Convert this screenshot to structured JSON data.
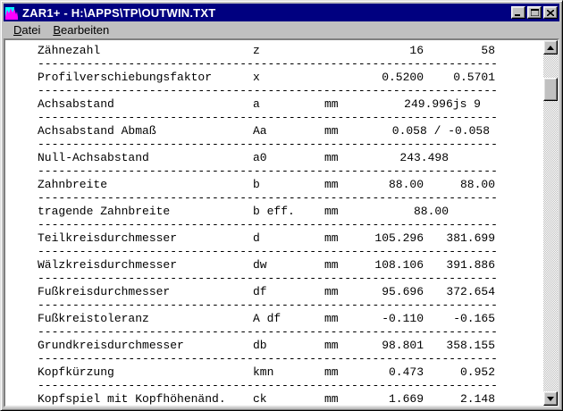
{
  "window": {
    "title": "ZAR1+ - H:\\APPS\\TP\\OUTWIN.TXT"
  },
  "menu": {
    "items": [
      {
        "accel": "D",
        "rest": "atei"
      },
      {
        "accel": "B",
        "rest": "earbeiten"
      }
    ]
  },
  "colors": {
    "titlebar": "#000080",
    "chrome": "#c0c0c0",
    "paper": "#ffffff",
    "text": "#000000",
    "icon_cyan": "#00ffff",
    "icon_magenta": "#ff00ff"
  },
  "table": {
    "separator": "--------------------------------------------------------------------------------",
    "rows": [
      {
        "label": "Zähnezahl",
        "symbol": "z",
        "unit": "",
        "v1": "16",
        "v2": "58"
      },
      {
        "label": "Profilverschiebungsfaktor",
        "symbol": "x",
        "unit": "",
        "v1": "0.5200",
        "v2": "0.5701"
      },
      {
        "label": "Achsabstand",
        "symbol": "a",
        "unit": "mm",
        "merged": "249.996js 9",
        "merged_align": "a"
      },
      {
        "label": "Achsabstand Abmaß",
        "symbol": "Aa",
        "unit": "mm",
        "merged": "0.058 / -0.058",
        "merged_align": "c"
      },
      {
        "label": "Null-Achsabstand",
        "symbol": "a0",
        "unit": "mm",
        "merged": "243.498",
        "merged_align": "b"
      },
      {
        "label": "Zahnbreite",
        "symbol": "b",
        "unit": "mm",
        "v1": "88.00",
        "v2": "88.00"
      },
      {
        "label": "tragende Zahnbreite",
        "symbol": "b eff.",
        "unit": "mm",
        "merged": "88.00",
        "merged_align": "b"
      },
      {
        "label": "Teilkreisdurchmesser",
        "symbol": "d",
        "unit": "mm",
        "v1": "105.296",
        "v2": "381.699"
      },
      {
        "label": "Wälzkreisdurchmesser",
        "symbol": "dw",
        "unit": "mm",
        "v1": "108.106",
        "v2": "391.886"
      },
      {
        "label": "Fußkreisdurchmesser",
        "symbol": "df",
        "unit": "mm",
        "v1": "95.696",
        "v2": "372.654"
      },
      {
        "label": "Fußkreistoleranz",
        "symbol": "A df",
        "unit": "mm",
        "v1": "-0.110",
        "v2": "-0.165"
      },
      {
        "label": "Grundkreisdurchmesser",
        "symbol": "db",
        "unit": "mm",
        "v1": "98.801",
        "v2": "358.155"
      },
      {
        "label": "Kopfkürzung",
        "symbol": "kmn",
        "unit": "mm",
        "v1": "0.473",
        "v2": "0.952"
      },
      {
        "label": "Kopfspiel mit Kopfhöhenänd.",
        "symbol": "ck",
        "unit": "mm",
        "v1": "1.669",
        "v2": "2.148"
      }
    ]
  }
}
